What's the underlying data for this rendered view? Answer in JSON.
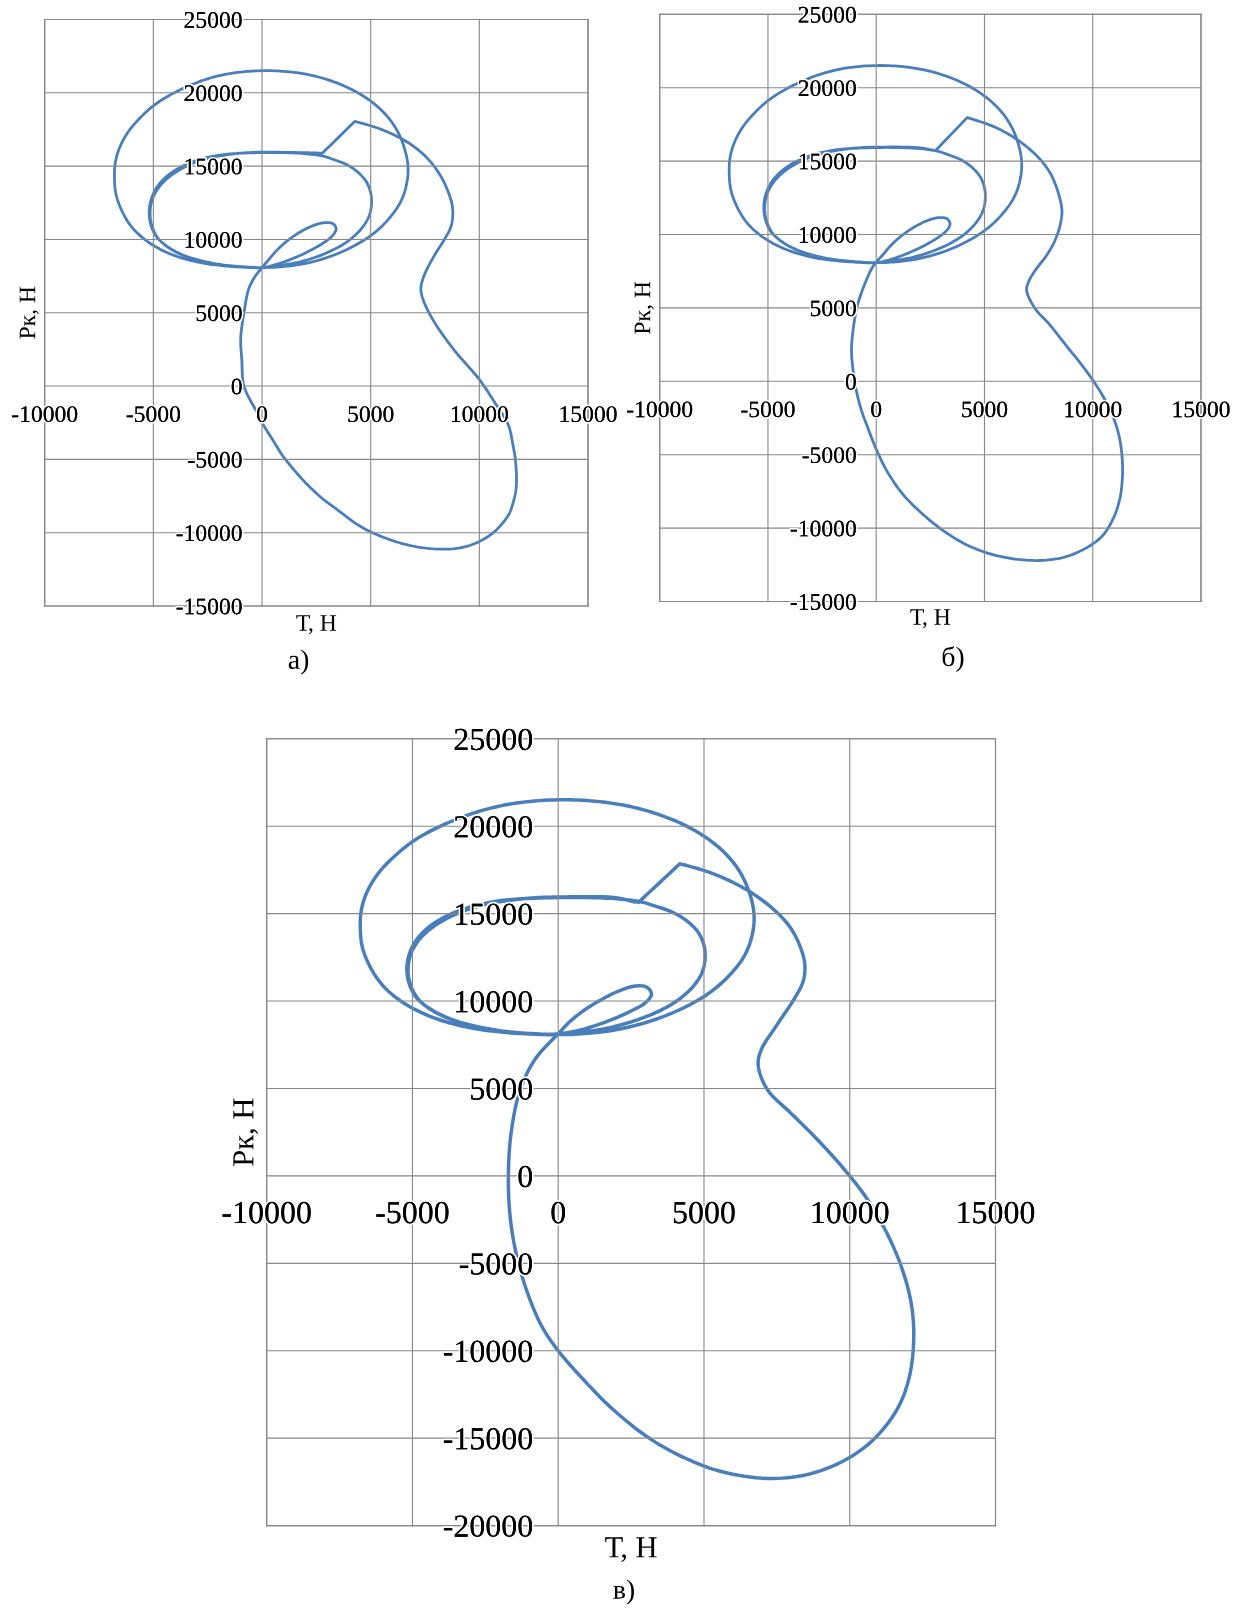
{
  "chart_data": [
    {
      "type": "line",
      "xlabel": "Т, Н",
      "ylabel": "Рк, Н",
      "annotations": [
        "а)"
      ],
      "grid": true,
      "xlim": [
        -10000,
        15000
      ],
      "ylim": [
        -15000,
        25000
      ],
      "xticks": [
        -10000,
        -5000,
        0,
        5000,
        10000,
        15000
      ],
      "yticks": [
        -15000,
        -10000,
        -5000,
        0,
        5000,
        10000,
        15000,
        20000,
        25000
      ],
      "x": [
        2780,
        4270,
        4510,
        5310,
        6110,
        6910,
        7610,
        8150,
        8550,
        8770,
        8710,
        8390,
        7920,
        7440,
        7310,
        7440,
        7920,
        8860,
        10000,
        10760,
        11330,
        11550,
        11670,
        11700,
        11550,
        11330,
        10570,
        9430,
        8100,
        6600,
        5080,
        4320,
        3560,
        2800,
        2080,
        1480,
        950,
        530,
        0,
        -230,
        -830,
        -930,
        -980,
        -830,
        -610,
        -320,
        0,
        320,
        720,
        1220,
        1820,
        2420,
        2920,
        3270,
        3410,
        3270,
        2820,
        2120,
        1320,
        620,
        0,
        -880,
        -1880,
        -2880,
        -3870,
        -4670,
        -5370,
        -5970,
        -6410,
        -6710,
        -6790,
        -6750,
        -6550,
        -6170,
        -5670,
        -5030,
        -4270,
        -3370,
        -2380,
        -1280,
        0,
        1120,
        2220,
        3210,
        4110,
        4910,
        5610,
        6150,
        6510,
        6710,
        6670,
        6410,
        5910,
        5210,
        4310,
        3210,
        2020,
        920,
        0,
        -880,
        -1880,
        -2880,
        -3670,
        -4370,
        -4870,
        -5130,
        -5190,
        -5070,
        -4770,
        -4270,
        -3570,
        -2680,
        -1680,
        0,
        920,
        1920,
        2820,
        3310,
        3910,
        4410,
        4810,
        5010,
        5030,
        4910,
        4610,
        4110,
        3510,
        2720,
        1720,
        720,
        0,
        -880,
        -1880,
        -2780,
        -3570,
        -4270,
        -4790,
        -5070,
        -5150,
        -5050,
        -4750,
        -4230,
        -3510,
        -2640,
        -1640,
        -680,
        0,
        1920,
        2680
      ],
      "series": [
        {
          "color": "#4a7ebb",
          "values": [
            15890,
            18050,
            17960,
            17600,
            17100,
            16420,
            15530,
            14500,
            13310,
            12130,
            10950,
            10000,
            8880,
            7470,
            6630,
            5790,
            4380,
            2420,
            450,
            -1240,
            -2640,
            -4040,
            -5170,
            -6850,
            -7980,
            -8820,
            -10080,
            -10930,
            -11120,
            -10800,
            -10000,
            -9380,
            -8540,
            -7700,
            -6710,
            -5730,
            -4750,
            -3760,
            -2500,
            -1800,
            0,
            1790,
            3260,
            5000,
            6630,
            7470,
            8080,
            8640,
            9320,
            9970,
            10560,
            10980,
            11150,
            11070,
            10740,
            10300,
            9760,
            9170,
            8640,
            8280,
            8080,
            8110,
            8220,
            8430,
            8820,
            9320,
            9970,
            10800,
            11830,
            13020,
            14200,
            15240,
            16270,
            17310,
            18200,
            19080,
            19820,
            20470,
            21010,
            21360,
            21510,
            21450,
            21210,
            20800,
            20240,
            19530,
            18640,
            17600,
            16420,
            15090,
            13910,
            12660,
            11540,
            10500,
            9620,
            8880,
            8370,
            8140,
            8080,
            8140,
            8280,
            8580,
            8960,
            9530,
            10210,
            11090,
            11980,
            12870,
            13700,
            14440,
            15060,
            15530,
            15800,
            15920,
            15920,
            15860,
            15680,
            15440,
            15090,
            14590,
            13910,
            13110,
            12280,
            11540,
            10800,
            10060,
            9470,
            8930,
            8460,
            8200,
            8080,
            8110,
            8220,
            8490,
            8880,
            9410,
            10090,
            10950,
            11830,
            12720,
            13550,
            14320,
            14970,
            15470,
            15770,
            15920,
            15950,
            15920,
            15890
          ]
        }
      ]
    },
    {
      "type": "line",
      "xlabel": "Т, Н",
      "ylabel": "Рк, Н",
      "annotations": [
        "б)"
      ],
      "grid": true,
      "xlim": [
        -10000,
        15000
      ],
      "ylim": [
        -15000,
        25000
      ],
      "xticks": [
        -10000,
        -5000,
        0,
        5000,
        10000,
        15000
      ],
      "yticks": [
        -15000,
        -10000,
        -5000,
        0,
        5000,
        10000,
        15000,
        20000,
        25000
      ],
      "x": [
        2740,
        4200,
        4540,
        5340,
        6140,
        6950,
        7650,
        8150,
        8570,
        8510,
        8250,
        7850,
        7390,
        7050,
        6950,
        7350,
        7950,
        8750,
        9550,
        10250,
        10850,
        11190,
        11350,
        11370,
        11250,
        10950,
        10450,
        9750,
        8850,
        7950,
        7150,
        6140,
        5140,
        4140,
        3140,
        2140,
        1240,
        540,
        40,
        -360,
        -720,
        -960,
        -1100,
        -1140,
        -940,
        -720,
        -220,
        0,
        320,
        720,
        1220,
        1820,
        2420,
        2920,
        3270,
        3410,
        3270,
        2820,
        2120,
        1320,
        620,
        0,
        -880,
        -1880,
        -2880,
        -3870,
        -4670,
        -5370,
        -5970,
        -6410,
        -6710,
        -6790,
        -6750,
        -6550,
        -6170,
        -5670,
        -5030,
        -4270,
        -3370,
        -2380,
        -1280,
        0,
        1120,
        2220,
        3210,
        4110,
        4910,
        5610,
        6150,
        6510,
        6710,
        6670,
        6410,
        5910,
        5210,
        4310,
        3210,
        2020,
        920,
        0,
        -880,
        -1880,
        -2880,
        -3670,
        -4370,
        -4870,
        -5130,
        -5190,
        -5070,
        -4770,
        -4270,
        -3570,
        -2680,
        -1680,
        0,
        920,
        1920,
        2820,
        3310,
        3910,
        4410,
        4810,
        5010,
        5030,
        4910,
        4610,
        4110,
        3510,
        2720,
        1720,
        720,
        0,
        -880,
        -1880,
        -2780,
        -3570,
        -4270,
        -4790,
        -5070,
        -5150,
        -5050,
        -4750,
        -4230,
        -3510,
        -2640,
        -1640,
        -680,
        0,
        1920,
        2640
      ],
      "series": [
        {
          "color": "#4a7ebb",
          "values": [
            15720,
            17960,
            17810,
            17400,
            16810,
            15980,
            14980,
            13860,
            11790,
            10750,
            9570,
            8540,
            7650,
            6820,
            6170,
            4930,
            3960,
            2480,
            1000,
            -470,
            -2100,
            -3570,
            -5050,
            -6530,
            -8010,
            -9340,
            -10520,
            -11310,
            -11910,
            -12170,
            -12200,
            -12050,
            -11700,
            -11110,
            -10220,
            -9040,
            -7710,
            -6230,
            -4760,
            -3280,
            -1800,
            -320,
            1150,
            2330,
            4700,
            5880,
            7650,
            8120,
            8640,
            9320,
            9970,
            10560,
            10980,
            11150,
            11070,
            10740,
            10300,
            9760,
            9170,
            8640,
            8280,
            8080,
            8110,
            8220,
            8430,
            8820,
            9320,
            9970,
            10800,
            11830,
            13020,
            14200,
            15240,
            16270,
            17310,
            18200,
            19080,
            19820,
            20470,
            21010,
            21360,
            21510,
            21450,
            21210,
            20800,
            20240,
            19530,
            18640,
            17600,
            16420,
            15090,
            13910,
            12660,
            11540,
            10500,
            9620,
            8880,
            8370,
            8140,
            8080,
            8140,
            8280,
            8580,
            8960,
            9530,
            10210,
            11090,
            11980,
            12870,
            13700,
            14440,
            15060,
            15530,
            15800,
            15920,
            15920,
            15860,
            15680,
            15440,
            15090,
            14590,
            13910,
            13110,
            12280,
            11540,
            10800,
            10060,
            9470,
            8930,
            8460,
            8200,
            8080,
            8110,
            8220,
            8490,
            8880,
            9410,
            10090,
            10950,
            11830,
            12720,
            13550,
            14320,
            14970,
            15470,
            15770,
            15920,
            15950,
            15920,
            15740
          ]
        }
      ]
    },
    {
      "type": "line",
      "xlabel": "Т, Н",
      "ylabel": "Рк, Н",
      "annotations": [
        "в)"
      ],
      "grid": true,
      "xlim": [
        -10000,
        15000
      ],
      "ylim": [
        -20000,
        25000
      ],
      "xticks": [
        -10000,
        -5000,
        0,
        5000,
        10000,
        15000
      ],
      "yticks": [
        -20000,
        -15000,
        -10000,
        -5000,
        0,
        5000,
        10000,
        15000,
        20000,
        25000
      ],
      "x": [
        2750,
        4170,
        4410,
        5190,
        5970,
        6750,
        7430,
        7960,
        8310,
        8460,
        8400,
        8100,
        7480,
        6960,
        6860,
        7170,
        8000,
        8930,
        9860,
        10580,
        11300,
        11820,
        12130,
        12190,
        12020,
        11610,
        10790,
        9750,
        8510,
        7170,
        5620,
        4380,
        3140,
        1900,
        870,
        0,
        -580,
        -1100,
        -1450,
        -1650,
        -1710,
        -1610,
        -1300,
        -790,
        0,
        410,
        900,
        1480,
        2070,
        2650,
        3040,
        3200,
        3000,
        2460,
        1680,
        800,
        0,
        -880,
        -1880,
        -2880,
        -3870,
        -4670,
        -5370,
        -5970,
        -6410,
        -6710,
        -6790,
        -6750,
        -6550,
        -6170,
        -5670,
        -5030,
        -4270,
        -3370,
        -2380,
        -1280,
        0,
        1120,
        2220,
        3210,
        4110,
        4910,
        5610,
        6150,
        6510,
        6710,
        6670,
        6410,
        5910,
        5210,
        4310,
        3210,
        2020,
        920,
        0,
        -880,
        -1880,
        -2880,
        -3670,
        -4370,
        -4870,
        -5130,
        -5190,
        -5070,
        -4770,
        -4270,
        -3570,
        -2680,
        -1680,
        0,
        920,
        1920,
        2820,
        3310,
        3910,
        4410,
        4810,
        5010,
        5030,
        4910,
        4610,
        4110,
        3510,
        2720,
        1720,
        720,
        0,
        -880,
        -1880,
        -2780,
        -3570,
        -4270,
        -4790,
        -5070,
        -5150,
        -5050,
        -4750,
        -4230,
        -3510,
        -2640,
        -1640,
        -680,
        0,
        1920,
        2650
      ],
      "series": [
        {
          "color": "#4a7ebb",
          "values": [
            15640,
            17850,
            17750,
            17360,
            16810,
            16060,
            15180,
            14210,
            13070,
            12090,
            11120,
            10140,
            8580,
            7200,
            6330,
            4950,
            3560,
            2010,
            280,
            -1280,
            -3360,
            -5430,
            -7510,
            -9580,
            -11660,
            -13390,
            -15120,
            -16330,
            -17090,
            -17300,
            -16920,
            -16160,
            -15020,
            -13390,
            -11660,
            -10000,
            -8550,
            -6470,
            -4390,
            -2320,
            0,
            2530,
            4950,
            6680,
            8130,
            8840,
            9490,
            10080,
            10570,
            10860,
            10790,
            10400,
            9920,
            9400,
            8840,
            8360,
            8130,
            8110,
            8220,
            8430,
            8820,
            9320,
            9970,
            10800,
            11830,
            13020,
            14200,
            15240,
            16270,
            17310,
            18200,
            19080,
            19820,
            20470,
            21010,
            21360,
            21510,
            21450,
            21210,
            20800,
            20240,
            19530,
            18640,
            17600,
            16420,
            15090,
            13910,
            12660,
            11540,
            10500,
            9620,
            8880,
            8370,
            8140,
            8080,
            8140,
            8280,
            8580,
            8960,
            9530,
            10210,
            11090,
            11980,
            12870,
            13700,
            14440,
            15060,
            15530,
            15800,
            15920,
            15920,
            15860,
            15680,
            15440,
            15090,
            14590,
            13910,
            13110,
            12280,
            11540,
            10800,
            10060,
            9470,
            8930,
            8460,
            8200,
            8080,
            8110,
            8220,
            8490,
            8880,
            9410,
            10090,
            10950,
            11830,
            12720,
            13550,
            14320,
            14970,
            15470,
            15770,
            15920,
            15950,
            15920,
            15660
          ]
        }
      ]
    }
  ]
}
